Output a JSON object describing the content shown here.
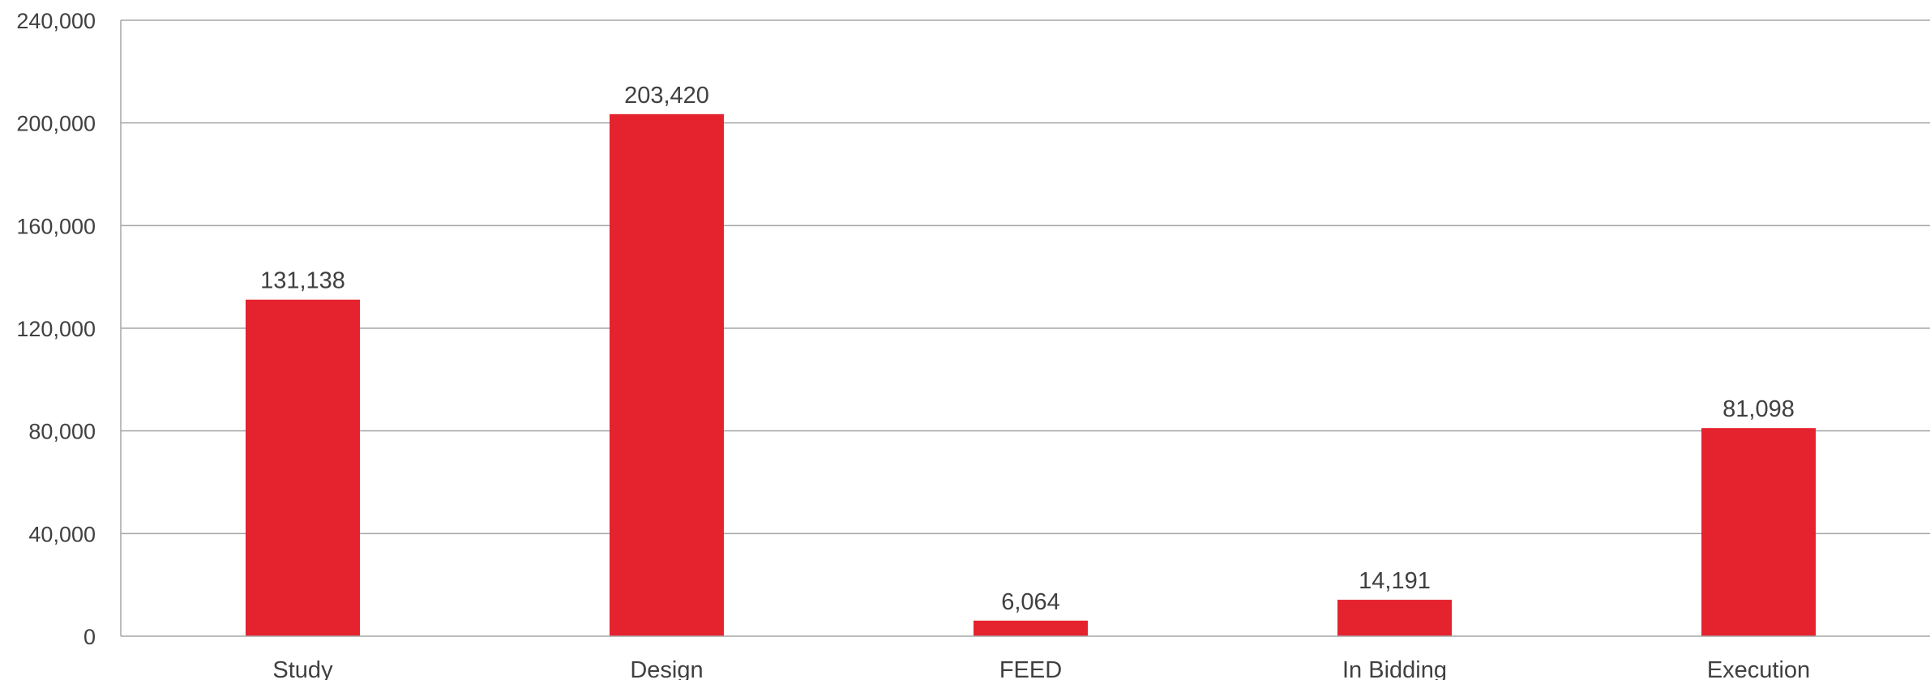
{
  "chart_data": {
    "type": "bar",
    "categories": [
      "Study",
      "Design",
      "FEED",
      "In Bidding",
      "Execution"
    ],
    "values": [
      131138,
      203420,
      6064,
      14191,
      81098
    ],
    "data_labels": [
      "131,138",
      "203,420",
      "6,064",
      "14,191",
      "81,098"
    ],
    "title": "",
    "xlabel": "",
    "ylabel": "",
    "ylim": [
      0,
      240000
    ],
    "yticks": [
      0,
      40000,
      80000,
      120000,
      160000,
      200000,
      240000
    ],
    "ytick_labels": [
      "0",
      "40,000",
      "80,000",
      "120,000",
      "160,000",
      "200,000",
      "240,000"
    ],
    "grid": true,
    "legend": "none",
    "colors": {
      "bar": "#e5232f",
      "grid": "#a6a6a6",
      "axis": "#a6a6a6",
      "text": "#404040"
    }
  }
}
